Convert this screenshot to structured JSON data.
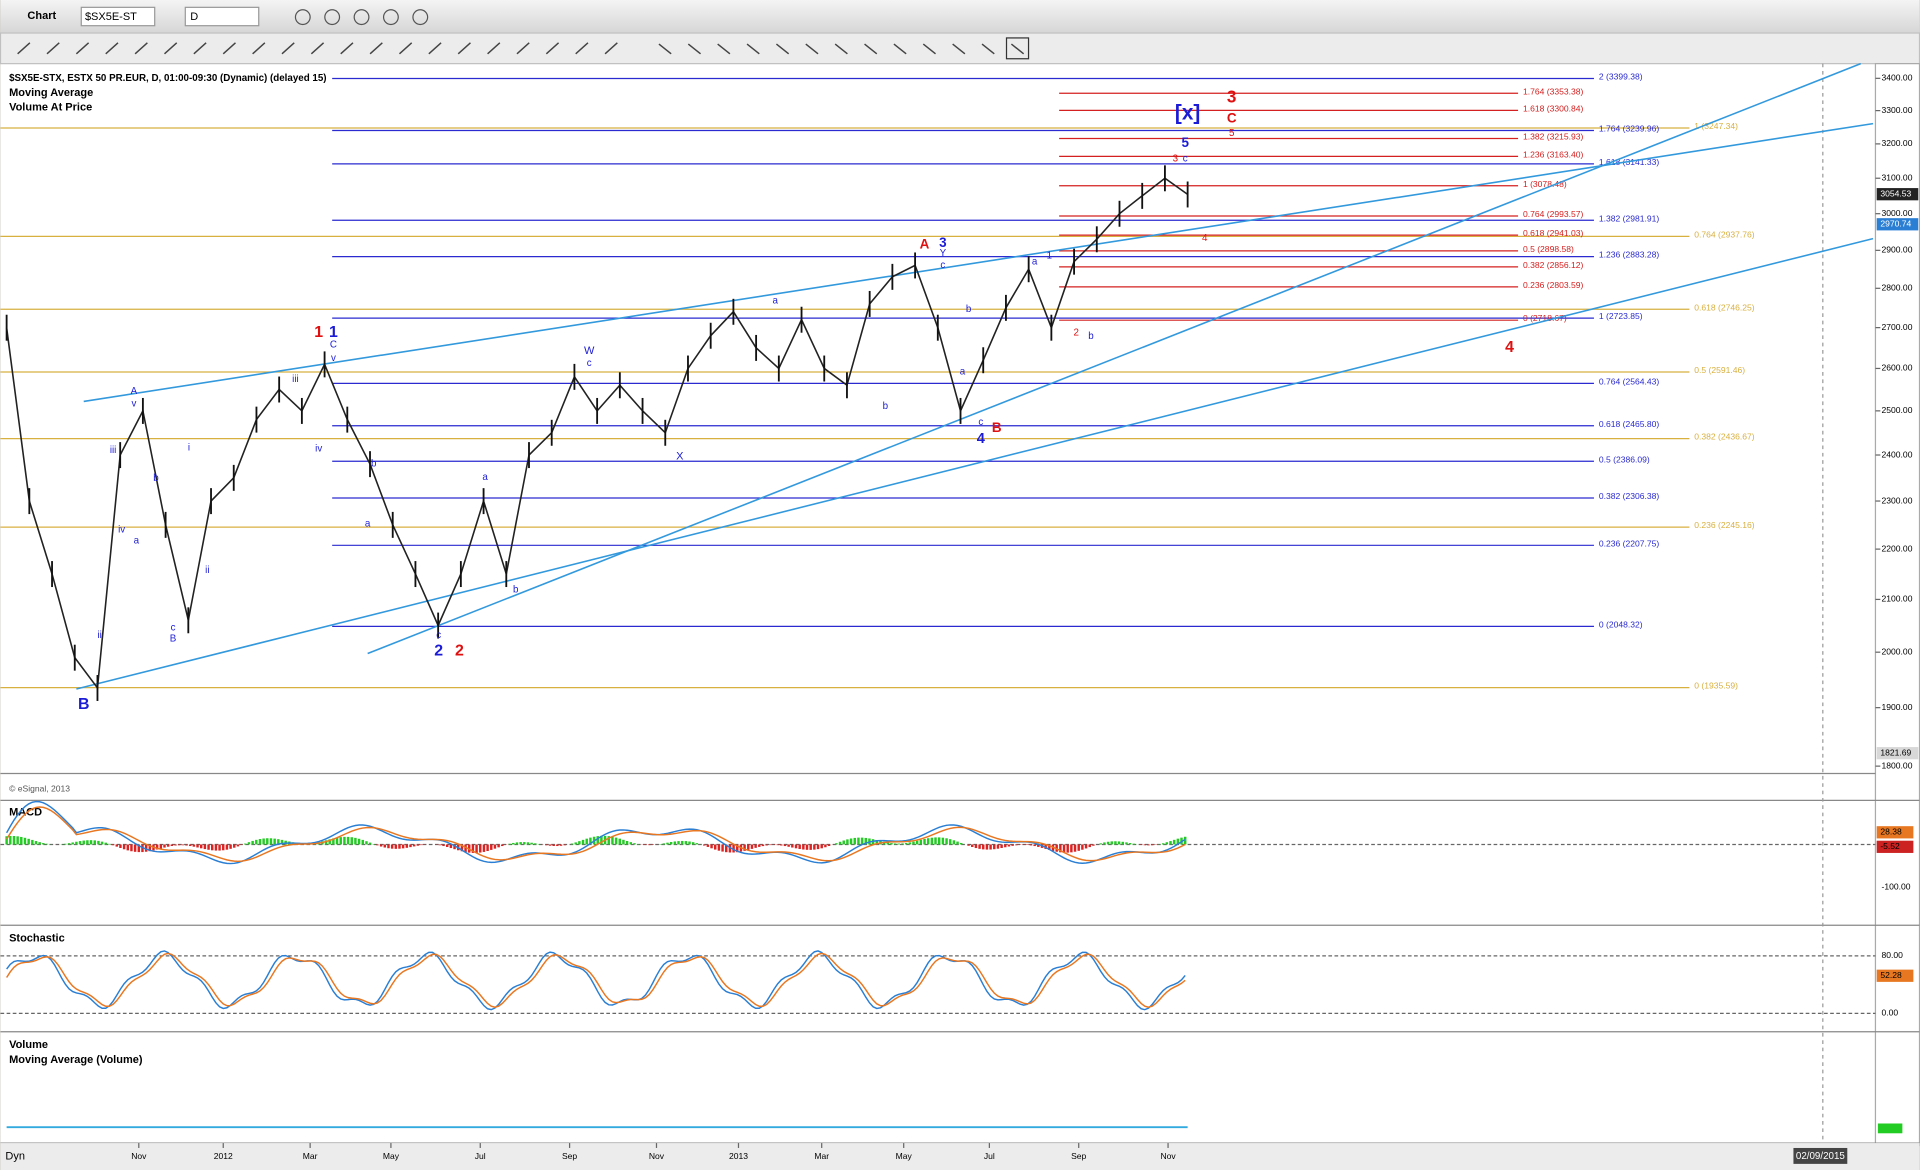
{
  "window": {
    "title": "Chart",
    "symbol": "$SX5E-ST",
    "interval": "D"
  },
  "chart": {
    "header": [
      "$SX5E-STX, ESTX 50 PR.EUR, D, 01:00-09:30 (Dynamic) (delayed 15)",
      "Moving Average",
      "Volume At Price"
    ],
    "copyright": "© eSignal, 2013",
    "log_scale": true,
    "ylim": [
      1800,
      3400
    ],
    "yticks": [
      {
        "value": 3400,
        "label": "3400.00"
      },
      {
        "value": 3300,
        "label": "3300.00"
      },
      {
        "value": 3200,
        "label": "3200.00"
      },
      {
        "value": 3100,
        "label": "3100.00"
      },
      {
        "value": 3000,
        "label": "3000.00"
      },
      {
        "value": 2900,
        "label": "2900.00"
      },
      {
        "value": 2800,
        "label": "2800.00"
      },
      {
        "value": 2700,
        "label": "2700.00"
      },
      {
        "value": 2600,
        "label": "2600.00"
      },
      {
        "value": 2500,
        "label": "2500.00"
      },
      {
        "value": 2400,
        "label": "2400.00"
      },
      {
        "value": 2300,
        "label": "2300.00"
      },
      {
        "value": 2200,
        "label": "2200.00"
      },
      {
        "value": 2100,
        "label": "2100.00"
      },
      {
        "value": 2000,
        "label": "2000.00"
      },
      {
        "value": 1900,
        "label": "1900.00"
      },
      {
        "value": 1800,
        "label": "1800.00"
      }
    ],
    "price_tags": [
      {
        "value": 3054.53,
        "color": "#222222"
      },
      {
        "value": 2970.74,
        "color": "#2a7fd4"
      },
      {
        "value": 1821.69,
        "color": "#d8d8d8"
      }
    ],
    "prices": [
      2700,
      2300,
      2150,
      1990,
      1935,
      2400,
      2500,
      2250,
      2060,
      2300,
      2350,
      2480,
      2550,
      2500,
      2610,
      2480,
      2380,
      2250,
      2150,
      2050,
      2150,
      2300,
      2150,
      2400,
      2450,
      2580,
      2500,
      2560,
      2500,
      2450,
      2600,
      2680,
      2740,
      2650,
      2600,
      2720,
      2600,
      2560,
      2760,
      2830,
      2860,
      2700,
      2500,
      2620,
      2750,
      2850,
      2700,
      2870,
      2930,
      3000,
      3050,
      3100,
      3054
    ],
    "fib_blue": [
      {
        "label": "2 (3399.38)",
        "price": 3399.38
      },
      {
        "label": "1.764 (3239.96)",
        "price": 3239.96
      },
      {
        "label": "1.618 (3141.33)",
        "price": 3141.33
      },
      {
        "label": "1.382 (2981.91)",
        "price": 2981.91
      },
      {
        "label": "1.236 (2883.28)",
        "price": 2883.28
      },
      {
        "label": "1 (2723.85)",
        "price": 2723.85
      },
      {
        "label": "0.764 (2564.43)",
        "price": 2564.43
      },
      {
        "label": "0.618 (2465.80)",
        "price": 2465.8
      },
      {
        "label": "0.5 (2386.09)",
        "price": 2386.09
      },
      {
        "label": "0.382 (2306.38)",
        "price": 2306.38
      },
      {
        "label": "0.236 (2207.75)",
        "price": 2207.75
      },
      {
        "label": "0 (2048.32)",
        "price": 2048.32
      }
    ],
    "fib_red": [
      {
        "label": "1.764 (3353.38)",
        "price": 3353.38
      },
      {
        "label": "1.618 (3300.84)",
        "price": 3300.84
      },
      {
        "label": "1.382 (3215.93)",
        "price": 3215.93
      },
      {
        "label": "1.236 (3163.40)",
        "price": 3163.4
      },
      {
        "label": "1 (3078.48)",
        "price": 3078.48
      },
      {
        "label": "0.764 (2993.57)",
        "price": 2993.57
      },
      {
        "label": "0.618 (2941.03)",
        "price": 2941.03
      },
      {
        "label": "0.5 (2898.58)",
        "price": 2898.58
      },
      {
        "label": "0.382 (2856.12)",
        "price": 2856.12
      },
      {
        "label": "0.236 (2803.59)",
        "price": 2803.59
      },
      {
        "label": "0 (2718.67)",
        "price": 2718.67
      }
    ],
    "fib_gold": [
      {
        "label": "1 (3247.34)",
        "price": 3247.34
      },
      {
        "label": "0.764 (2937.76)",
        "price": 2937.76
      },
      {
        "label": "0.618 (2746.25)",
        "price": 2746.25
      },
      {
        "label": "0.5 (2591.46)",
        "price": 2591.46
      },
      {
        "label": "0.382 (2436.67)",
        "price": 2436.67
      },
      {
        "label": "0.236 (2245.16)",
        "price": 2245.16
      },
      {
        "label": "0 (1935.59)",
        "price": 1935.59
      }
    ],
    "wave_labels": [
      {
        "text": "B",
        "color": "#1c1cd6"
      },
      {
        "text": "1",
        "color": "#e01010"
      },
      {
        "text": "1",
        "color": "#1c1cd6"
      },
      {
        "text": "C",
        "color": "#1c1cd6"
      },
      {
        "text": "v",
        "color": "#1c1cd6"
      },
      {
        "text": "A",
        "color": "#1c1cd6"
      },
      {
        "text": "v",
        "color": "#1c1cd6"
      },
      {
        "text": "iii",
        "color": "#1c1cd6"
      },
      {
        "text": "iv",
        "color": "#1c1cd6"
      },
      {
        "text": "ii",
        "color": "#1c1cd6"
      },
      {
        "text": "a",
        "color": "#1c1cd6"
      },
      {
        "text": "b",
        "color": "#1c1cd6"
      },
      {
        "text": "c",
        "color": "#1c1cd6"
      },
      {
        "text": "B",
        "color": "#1c1cd6"
      },
      {
        "text": "i",
        "color": "#1c1cd6"
      },
      {
        "text": "ii",
        "color": "#1c1cd6"
      },
      {
        "text": "iii",
        "color": "#1c1cd6"
      },
      {
        "text": "iv",
        "color": "#1c1cd6"
      },
      {
        "text": "b",
        "color": "#1c1cd6"
      },
      {
        "text": "a",
        "color": "#1c1cd6"
      },
      {
        "text": "c",
        "color": "#1c1cd6"
      },
      {
        "text": "2",
        "color": "#1c1cd6"
      },
      {
        "text": "2",
        "color": "#e01010"
      },
      {
        "text": "a",
        "color": "#1c1cd6"
      },
      {
        "text": "b",
        "color": "#1c1cd6"
      },
      {
        "text": "W",
        "color": "#1c1cd6"
      },
      {
        "text": "c",
        "color": "#1c1cd6"
      },
      {
        "text": "X",
        "color": "#1c1cd6"
      },
      {
        "text": "a",
        "color": "#1c1cd6"
      },
      {
        "text": "b",
        "color": "#1c1cd6"
      },
      {
        "text": "A",
        "color": "#e01010"
      },
      {
        "text": "3",
        "color": "#1c1cd6"
      },
      {
        "text": "Y",
        "color": "#1c1cd6"
      },
      {
        "text": "c",
        "color": "#1c1cd6"
      },
      {
        "text": "b",
        "color": "#1c1cd6"
      },
      {
        "text": "a",
        "color": "#1c1cd6"
      },
      {
        "text": "c",
        "color": "#1c1cd6"
      },
      {
        "text": "4",
        "color": "#1c1cd6"
      },
      {
        "text": "B",
        "color": "#e01010"
      },
      {
        "text": "a",
        "color": "#1c1cd6"
      },
      {
        "text": "1",
        "color": "#1c1cd6"
      },
      {
        "text": "2",
        "color": "#e01010"
      },
      {
        "text": "b",
        "color": "#1c1cd6"
      },
      {
        "text": "3",
        "color": "#e01010"
      },
      {
        "text": "c",
        "color": "#1c1cd6"
      },
      {
        "text": "5",
        "color": "#1c1cd6"
      },
      {
        "text": "[x]",
        "color": "#1c1cd6"
      },
      {
        "text": "3",
        "color": "#e01010"
      },
      {
        "text": "C",
        "color": "#e01010"
      },
      {
        "text": "5",
        "color": "#e01010"
      },
      {
        "text": "4",
        "color": "#e01010"
      },
      {
        "text": "4",
        "color": "#e01010"
      }
    ],
    "x_labels": [
      "Nov",
      "2012",
      "Mar",
      "May",
      "Jul",
      "Sep",
      "Nov",
      "2013",
      "Mar",
      "May",
      "Jul",
      "Sep",
      "Nov"
    ],
    "macd": {
      "title": "MACD",
      "ticks": [
        {
          "value": -100,
          "label": "-100.00"
        }
      ],
      "tags": [
        {
          "value": 28.38,
          "color": "#e87722"
        },
        {
          "value": -5.52,
          "color": "#cc2222"
        }
      ]
    },
    "stochastic": {
      "title": "Stochastic",
      "ticks": [
        {
          "value": 80,
          "label": "80.00"
        },
        {
          "value": 0,
          "label": "0.00"
        }
      ],
      "tags": [
        {
          "value": 52.28,
          "color": "#e87722"
        }
      ]
    },
    "volume": {
      "title": "Volume",
      "subtitle": "Moving Average (Volume)"
    },
    "status": {
      "mode": "Dyn",
      "date": "02/09/2015"
    }
  }
}
